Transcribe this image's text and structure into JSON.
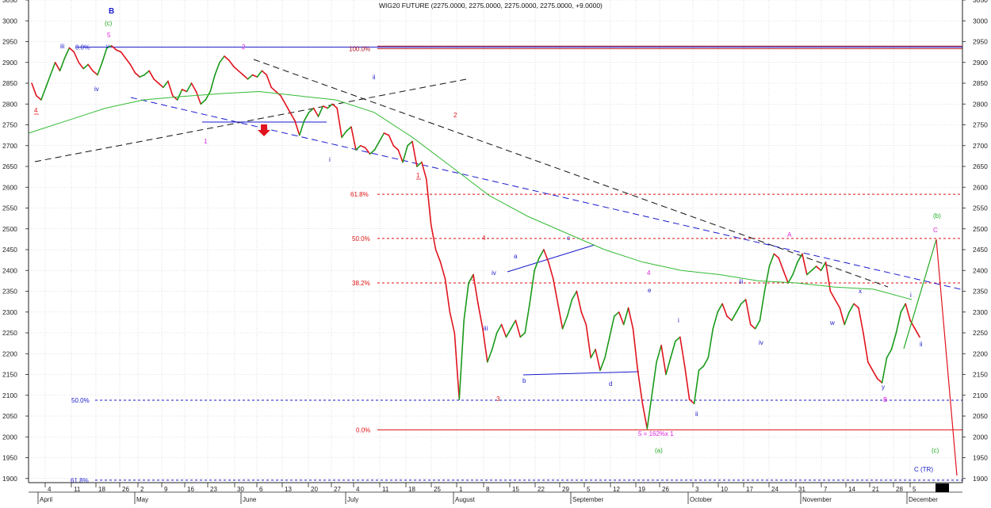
{
  "chart_data": {
    "type": "line",
    "title": "WIG20 FUTURE (2275.0000, 2275.0000, 2275.0000, 2275.0000, +9.0000)",
    "colors": {
      "up": "#1a9a1a",
      "down": "#e0141e",
      "moving_average": "#33bb33",
      "wave_blue": "#1a1acc",
      "wave_magenta": "#dd22dd",
      "wave_red": "#e0141e",
      "wave_green": "#22aa22",
      "fib_red": "#dd1111",
      "fib_blue": "#1a1acc",
      "trend_black": "#111111",
      "grid": "#c8c8c8"
    },
    "ylim": [
      1890,
      3050
    ],
    "y_ticks": [
      1900,
      1950,
      2000,
      2050,
      2100,
      2150,
      2200,
      2250,
      2300,
      2350,
      2400,
      2450,
      2500,
      2550,
      2600,
      2650,
      2700,
      2750,
      2800,
      2850,
      2900,
      2950,
      3000,
      3050
    ],
    "grid": true,
    "x_day_labels": [
      "4",
      "11",
      "18",
      "26",
      "2",
      "9",
      "16",
      "23",
      "30",
      "6",
      "13",
      "20",
      "27",
      "4",
      "11",
      "18",
      "25",
      "1",
      "8",
      "15",
      "22",
      "29",
      "5",
      "12",
      "19",
      "26",
      "3",
      "10",
      "17",
      "24",
      "31",
      "7",
      "14",
      "21",
      "28",
      "5"
    ],
    "x_month_labels": [
      "April",
      "May",
      "June",
      "July",
      "August",
      "September",
      "October",
      "November",
      "December"
    ],
    "series": [
      {
        "values": [
          2850,
          2820,
          2810,
          2840,
          2870,
          2900,
          2880,
          2910,
          2935,
          2925,
          2900,
          2885,
          2895,
          2880,
          2870,
          2900,
          2935,
          2940,
          2930,
          2925,
          2910,
          2895,
          2875,
          2865,
          2870,
          2880,
          2860,
          2850,
          2840,
          2855,
          2820,
          2810,
          2835,
          2830,
          2850,
          2830,
          2800,
          2810,
          2830,
          2870,
          2900,
          2915,
          2905,
          2890,
          2880,
          2870,
          2860,
          2870,
          2865,
          2880,
          2870,
          2840,
          2830,
          2820,
          2800,
          2780,
          2760,
          2725,
          2760,
          2780,
          2790,
          2770,
          2795,
          2790,
          2800,
          2790,
          2720,
          2735,
          2745,
          2690,
          2700,
          2695,
          2680,
          2690,
          2710,
          2730,
          2725,
          2700,
          2690,
          2660,
          2700,
          2710,
          2650,
          2660,
          2620,
          2510,
          2450,
          2420,
          2380,
          2300,
          2250,
          2090,
          2280,
          2370,
          2390,
          2320,
          2260,
          2180,
          2210,
          2250,
          2270,
          2240,
          2260,
          2280,
          2240,
          2250,
          2320,
          2400,
          2430,
          2450,
          2420,
          2380,
          2320,
          2260,
          2290,
          2330,
          2350,
          2300,
          2270,
          2190,
          2210,
          2160,
          2190,
          2240,
          2290,
          2300,
          2270,
          2310,
          2260,
          2160,
          2080,
          2020,
          2100,
          2180,
          2220,
          2150,
          2190,
          2230,
          2240,
          2170,
          2090,
          2080,
          2160,
          2170,
          2190,
          2260,
          2300,
          2320,
          2290,
          2280,
          2300,
          2320,
          2330,
          2270,
          2260,
          2280,
          2350,
          2410,
          2440,
          2430,
          2400,
          2370,
          2390,
          2420,
          2440,
          2390,
          2400,
          2410,
          2400,
          2420,
          2350,
          2330,
          2310,
          2270,
          2300,
          2320,
          2310,
          2250,
          2180,
          2160,
          2140,
          2130,
          2190,
          2210,
          2250,
          2300,
          2320,
          2280,
          2260,
          2240
        ]
      },
      {
        "values": [
          2730,
          2760,
          2790,
          2810,
          2818,
          2825,
          2830,
          2820,
          2810,
          2780,
          2720,
          2650,
          2580,
          2530,
          2490,
          2450,
          2420,
          2400,
          2390,
          2375,
          2370,
          2360,
          2355,
          2330
        ]
      }
    ],
    "wave_labels_blue": [
      "B",
      "iii",
      "v",
      "iv",
      "ii",
      "i",
      "iv",
      "iii",
      "a",
      "c",
      "b",
      "d",
      "e",
      "i",
      "ii",
      "iii",
      "iv",
      "w",
      "x",
      "y",
      "i",
      "ii",
      "C (TR)"
    ],
    "wave_labels_magenta": [
      "5",
      "2",
      "1",
      "4",
      "A",
      "B",
      "C",
      "5 = 162%x 1"
    ],
    "wave_labels_red": [
      "4",
      "2",
      "1",
      "4",
      "3",
      "3"
    ],
    "wave_labels_green": [
      "(c)",
      "(a)",
      "(b)",
      "(c)"
    ],
    "fib_labels": [
      "0.0%",
      "100.0%",
      "61.8%",
      "50.0%",
      "38.2%",
      "50.0%",
      "0.0%",
      "61.8%"
    ]
  }
}
